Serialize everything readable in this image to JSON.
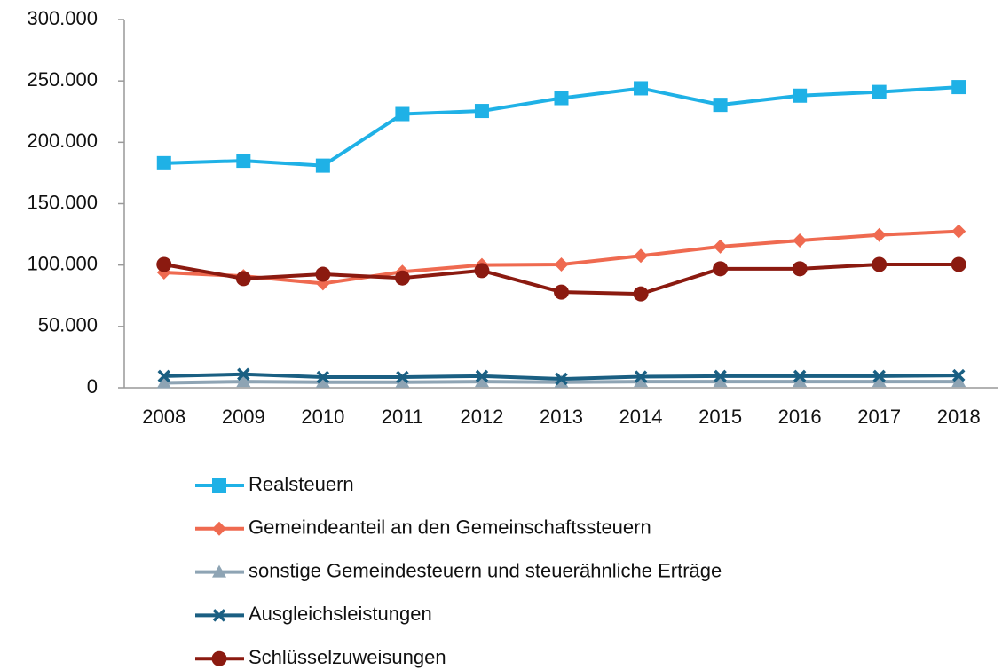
{
  "chart_data": {
    "type": "line",
    "categories": [
      "2008",
      "2009",
      "2010",
      "2011",
      "2012",
      "2013",
      "2014",
      "2015",
      "2016",
      "2017",
      "2018"
    ],
    "series": [
      {
        "name": "Realsteuern",
        "color": "#1fb1e6",
        "marker": "square",
        "values": [
          183000,
          185000,
          181000,
          223000,
          225500,
          236000,
          244000,
          230500,
          238000,
          241000,
          245000
        ]
      },
      {
        "name": "Gemeindeanteil an den Gemeinschaftssteuern",
        "color": "#ef6a50",
        "marker": "diamond",
        "values": [
          94000,
          91000,
          85000,
          94500,
          100000,
          100500,
          107500,
          115000,
          120000,
          124500,
          127500
        ]
      },
      {
        "name": "sonstige Gemeindesteuern und steuerähnliche Erträge",
        "color": "#8ea4b4",
        "marker": "triangle",
        "values": [
          4000,
          5000,
          4500,
          4500,
          5000,
          4500,
          5000,
          5000,
          5000,
          5000,
          5000
        ]
      },
      {
        "name": "Ausgleichsleistungen",
        "color": "#1a5f82",
        "marker": "x",
        "values": [
          9500,
          11000,
          8700,
          8700,
          9500,
          7200,
          9000,
          9500,
          9500,
          9500,
          10000
        ]
      },
      {
        "name": "Schlüsselzuweisungen",
        "color": "#8b1a10",
        "marker": "circle",
        "values": [
          100500,
          89000,
          92500,
          89500,
          95500,
          78000,
          76500,
          97000,
          97000,
          100500,
          100500
        ]
      }
    ],
    "ylim": [
      0,
      300000
    ],
    "yticks": [
      0,
      {
        "value": 50000,
        "label": "50.000"
      },
      {
        "value": 100000,
        "label": "100.000"
      },
      {
        "value": 150000,
        "label": "150.000"
      },
      {
        "value": 200000,
        "label": "200.000"
      },
      {
        "value": 250000,
        "label": "250.000"
      },
      {
        "value": 300000,
        "label": "300.000"
      }
    ],
    "grid": false,
    "legend": "bottom"
  }
}
